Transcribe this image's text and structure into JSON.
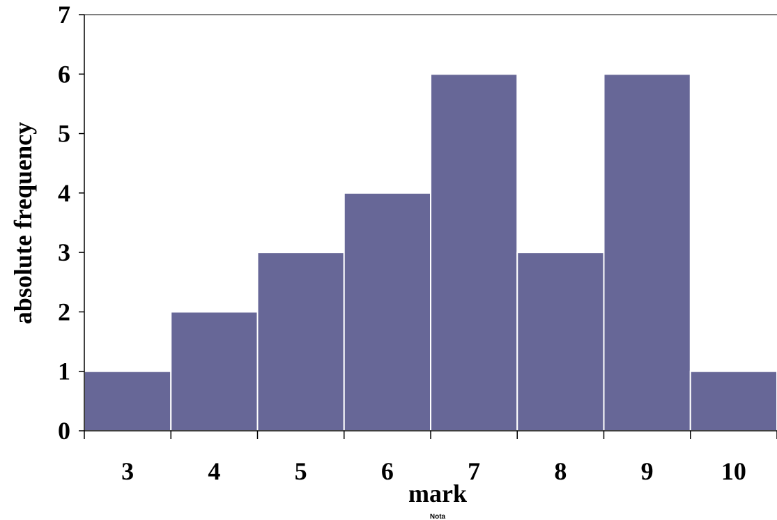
{
  "chart_data": {
    "type": "bar",
    "categories": [
      "3",
      "4",
      "5",
      "6",
      "7",
      "8",
      "9",
      "10"
    ],
    "values": [
      1,
      2,
      3,
      4,
      6,
      3,
      6,
      1
    ],
    "title": "",
    "xlabel": "mark",
    "secondary_xlabel": "Nota",
    "ylabel": "absolute frequency",
    "ylim": [
      0,
      7
    ],
    "yticks": [
      "0",
      "1",
      "2",
      "3",
      "4",
      "5",
      "6",
      "7"
    ],
    "bar_color": "#676797",
    "grid": false,
    "legend": "none"
  }
}
